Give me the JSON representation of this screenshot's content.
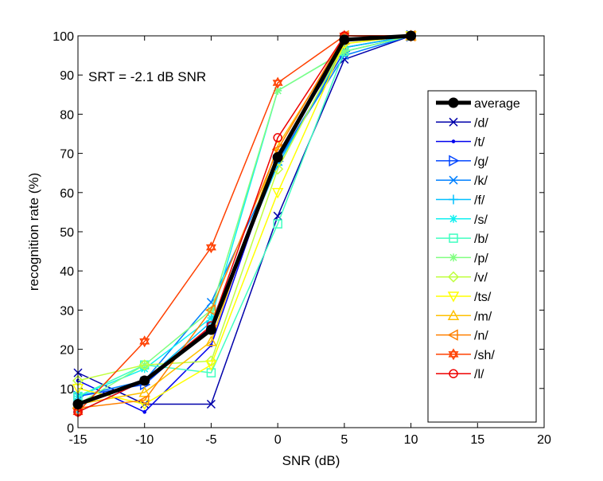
{
  "chart_data": {
    "type": "line",
    "title": "",
    "xlabel": "SNR (dB)",
    "ylabel": "recognition rate (%)",
    "xlim": [
      -15,
      20
    ],
    "ylim": [
      0,
      100
    ],
    "xticks": [
      "-15",
      "-10",
      "-5",
      "0",
      "5",
      "10",
      "15",
      "20"
    ],
    "yticks": [
      "0",
      "10",
      "20",
      "30",
      "40",
      "50",
      "60",
      "70",
      "80",
      "90",
      "100"
    ],
    "annotation": "SRT = -2.1 dB SNR",
    "legend_position": "right",
    "grid": false,
    "x": [
      -15,
      -10,
      -5,
      0,
      5,
      10
    ],
    "series": [
      {
        "name": "average",
        "color": "#000000",
        "marker": "dot",
        "values": [
          6,
          12,
          25,
          69,
          99,
          100
        ]
      },
      {
        "name": "/d/",
        "color": "#0000aa",
        "marker": "x",
        "values": [
          14,
          6,
          6,
          54,
          94,
          100
        ]
      },
      {
        "name": "/t/",
        "color": "#0000ee",
        "marker": "point",
        "values": [
          12,
          4,
          21,
          70,
          97,
          100
        ]
      },
      {
        "name": "/g/",
        "color": "#0044ff",
        "marker": "triangle-right",
        "values": [
          8,
          11,
          26,
          68,
          96,
          100
        ]
      },
      {
        "name": "/k/",
        "color": "#0080ff",
        "marker": "x",
        "values": [
          8,
          12,
          32,
          68,
          95,
          100
        ]
      },
      {
        "name": "/f/",
        "color": "#00c0ff",
        "marker": "plus",
        "values": [
          4,
          12,
          27,
          67,
          97,
          100
        ]
      },
      {
        "name": "/s/",
        "color": "#10f0f0",
        "marker": "star",
        "values": [
          8,
          15,
          28,
          86,
          96,
          100
        ]
      },
      {
        "name": "/b/",
        "color": "#40ffc0",
        "marker": "square",
        "values": [
          8,
          16,
          14,
          52,
          96,
          100
        ]
      },
      {
        "name": "/p/",
        "color": "#80ff80",
        "marker": "star",
        "values": [
          6,
          16,
          30,
          86,
          96,
          100
        ]
      },
      {
        "name": "/v/",
        "color": "#c0ff40",
        "marker": "diamond",
        "values": [
          12,
          16,
          17,
          66,
          98,
          100
        ]
      },
      {
        "name": "/ts/",
        "color": "#ffff00",
        "marker": "triangle-down",
        "values": [
          10,
          6,
          16,
          60,
          98,
          100
        ]
      },
      {
        "name": "/m/",
        "color": "#ffc000",
        "marker": "triangle-up",
        "values": [
          6,
          9,
          22,
          72,
          99,
          100
        ]
      },
      {
        "name": "/n/",
        "color": "#ff8000",
        "marker": "triangle-left",
        "values": [
          5,
          7,
          30,
          71,
          100,
          100
        ]
      },
      {
        "name": "/sh/",
        "color": "#ff4000",
        "marker": "hexagram",
        "values": [
          4,
          22,
          46,
          88,
          100,
          100
        ]
      },
      {
        "name": "/l/",
        "color": "#ee0000",
        "marker": "circle",
        "values": [
          4,
          12,
          26,
          74,
          100,
          100
        ]
      }
    ]
  }
}
